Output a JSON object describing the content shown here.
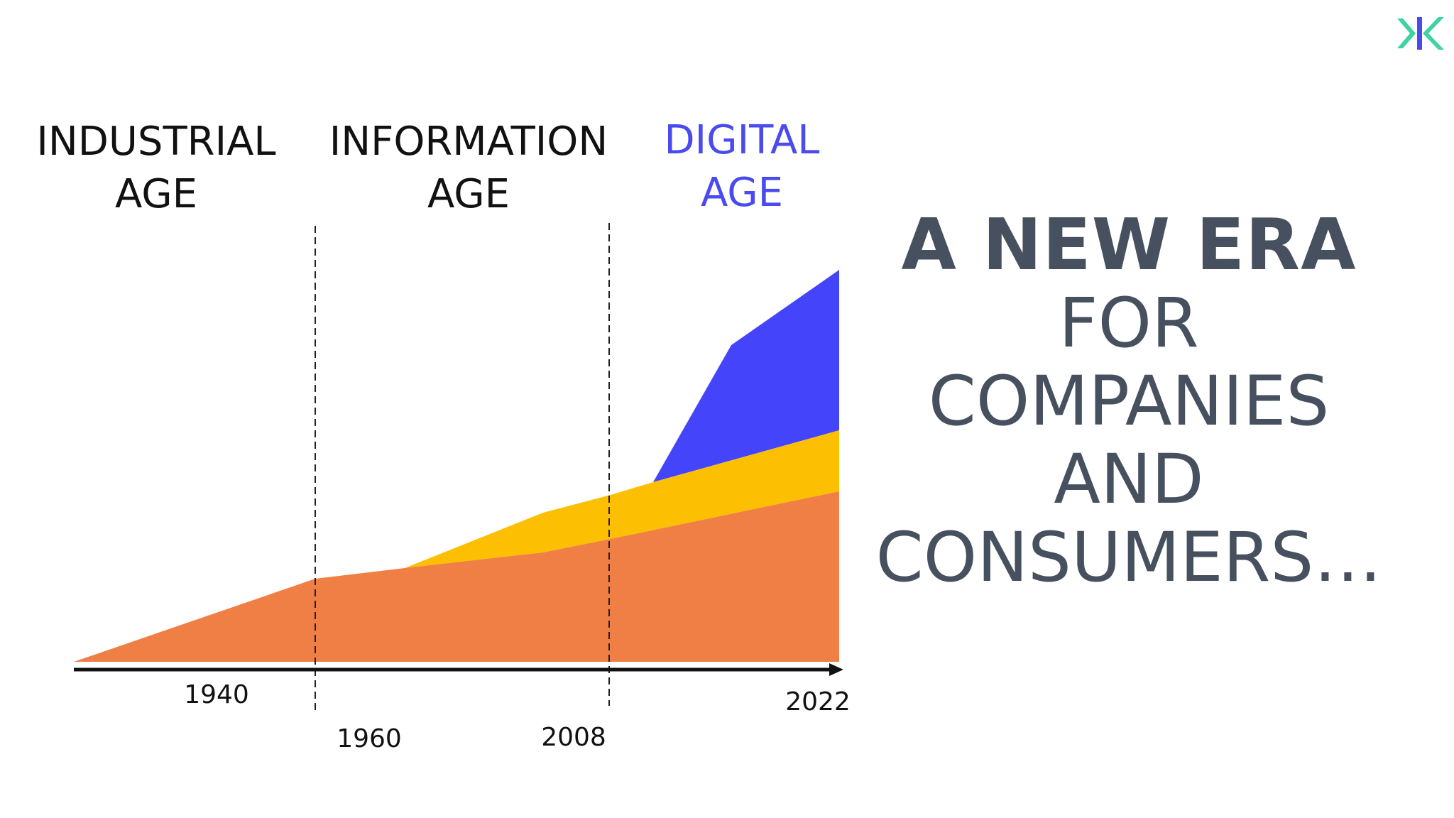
{
  "eras": [
    {
      "line1": "INDUSTRIAL",
      "line2": "AGE",
      "color": "#111111"
    },
    {
      "line1": "INFORMATION",
      "line2": "AGE",
      "color": "#111111"
    },
    {
      "line1": "DIGITAL",
      "line2": "AGE",
      "color": "#4a4aef"
    }
  ],
  "years": {
    "start": "1940",
    "info_boundary": "1960",
    "digital_boundary": "2008",
    "end": "2022"
  },
  "layers": [
    {
      "id": "base",
      "color": "#f07f45"
    },
    {
      "id": "middle",
      "color": "#fdbf01"
    },
    {
      "id": "top",
      "color": "#4445fb"
    }
  ],
  "headline": {
    "line1": "A NEW ERA",
    "line2": "FOR",
    "line3": "COMPANIES",
    "line4": "AND",
    "line5": "CONSUMERS…"
  },
  "colors": {
    "headline": "#46505e",
    "axis": "#111111",
    "logo_green": "#3fd3a0",
    "logo_blue": "#4a4aef"
  },
  "logo": {
    "icon": "brand-logo-icon"
  }
}
